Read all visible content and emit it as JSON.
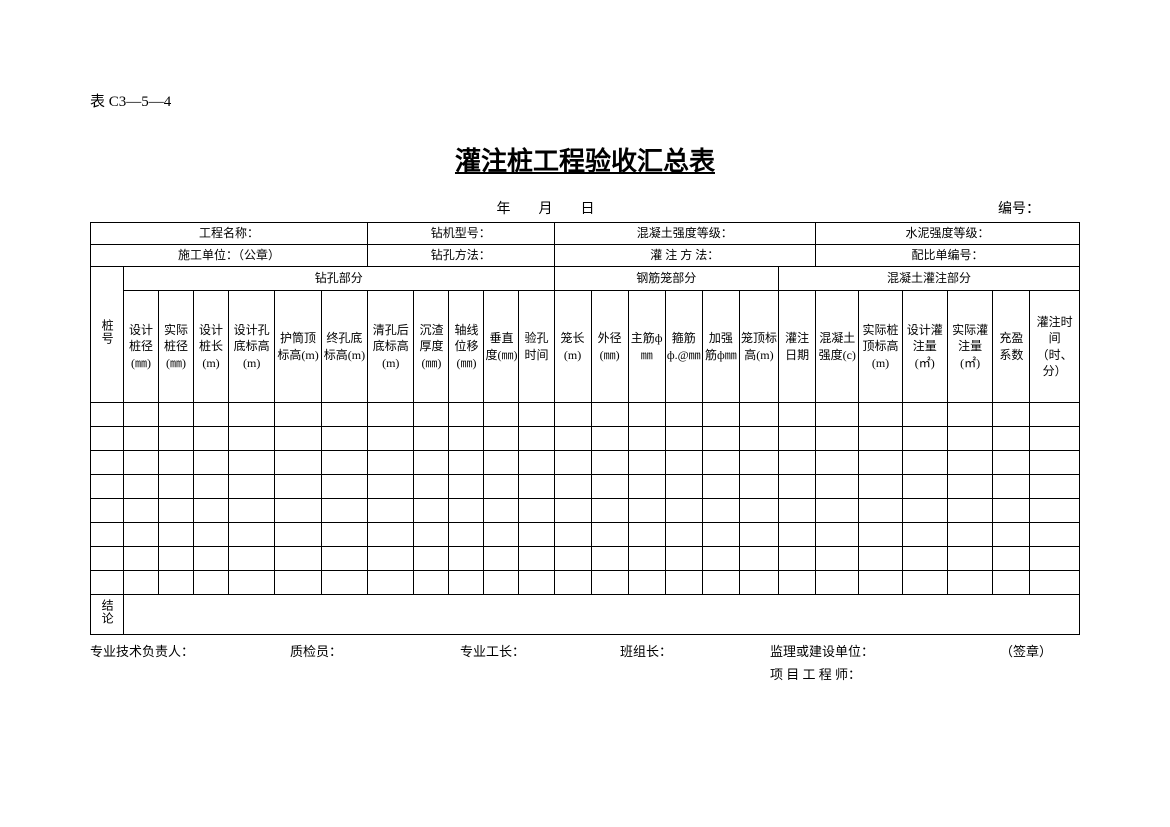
{
  "form_code": "表 C3—5—4",
  "title": "灌注桩工程验收汇总表",
  "date_line": "年　　月　　日",
  "serial_label": "编号：",
  "info": {
    "row1": {
      "c1": "工程名称：",
      "c2": "钻机型号：",
      "c3": "混凝土强度等级：",
      "c4": "水泥强度等级："
    },
    "row2": {
      "c1": "施工单位：（公章）",
      "c2": "钻孔方法：",
      "c3": "灌 注 方 法：",
      "c4": "配比单编号："
    }
  },
  "sections": {
    "pile_no": "桩号",
    "drill": "钻孔部分",
    "cage": "钢筋笼部分",
    "concrete": "混凝土灌注部分"
  },
  "cols": [
    "设计桩径(㎜)",
    "实际桩径(㎜)",
    "设计桩长(m)",
    "设计孔底标高(m)",
    "护筒顶标高(m)",
    "终孔底标高(m)",
    "清孔后底标高(m)",
    "沉渣厚度(㎜)",
    "轴线位移(㎜)",
    "垂直度(㎜)",
    "验孔时间",
    "笼长(m)",
    "外径(㎜)",
    "主筋ф㎜",
    "箍筋ф.@㎜",
    "加强筋ф㎜",
    "笼顶标高(m)",
    "灌注日期",
    "混凝土强度(c)",
    "实际桩顶标高(m)",
    "设计灌注量(㎡)",
    "实际灌注量(㎡)",
    "充盈系数",
    "灌注时间（时、分）"
  ],
  "conclusion_label": "结论",
  "footer": {
    "f1": "专业技术负责人：",
    "f2": "质检员：",
    "f3": "专业工长：",
    "f4": "班组长：",
    "f5": "监理或建设单位：",
    "f6": "（签章）",
    "f7": "项 目 工 程 师："
  },
  "style": {
    "page_bg": "#ffffff",
    "border_color": "#000000",
    "text_color": "#000000",
    "title_fontsize": 26,
    "body_fontsize": 12,
    "data_row_count": 8,
    "col_count": 25
  }
}
